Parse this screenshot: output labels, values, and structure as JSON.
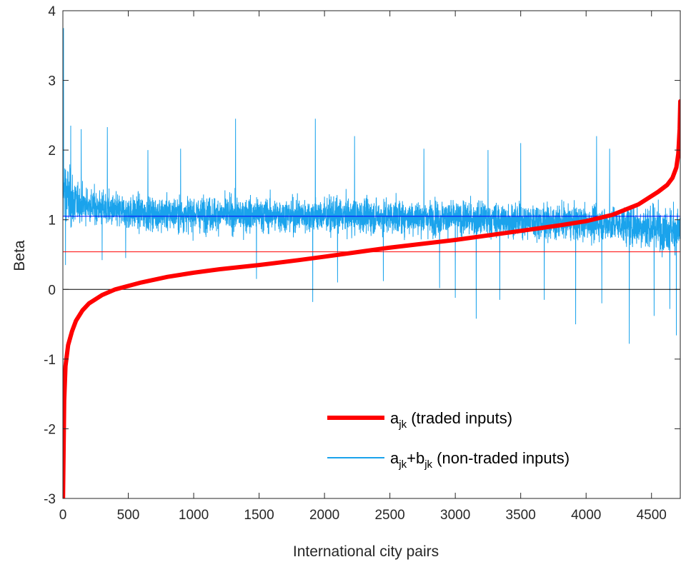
{
  "chart_data": {
    "type": "line",
    "title": "",
    "xlabel": "International city pairs",
    "ylabel": "Beta",
    "xlim": [
      0,
      4720
    ],
    "ylim": [
      -3,
      4
    ],
    "xticks": [
      0,
      500,
      1000,
      1500,
      2000,
      2500,
      3000,
      3500,
      4000,
      4500
    ],
    "yticks": [
      -3,
      -2,
      -1,
      0,
      1,
      2,
      3,
      4
    ],
    "grid": false,
    "legend_position": "bottom-right",
    "series": [
      {
        "name": "a_jk (traded inputs)",
        "color": "#ff0000",
        "kind": "sorted-curve",
        "x": [
          1,
          10,
          20,
          40,
          70,
          100,
          150,
          200,
          300,
          400,
          500,
          600,
          800,
          1000,
          1200,
          1500,
          1800,
          2000,
          2500,
          3000,
          3500,
          3800,
          4000,
          4200,
          4400,
          4550,
          4620,
          4660,
          4690,
          4705,
          4715,
          4720
        ],
        "y": [
          -3.0,
          -1.6,
          -1.1,
          -0.8,
          -0.6,
          -0.45,
          -0.3,
          -0.2,
          -0.08,
          0.0,
          0.05,
          0.1,
          0.18,
          0.24,
          0.29,
          0.35,
          0.42,
          0.47,
          0.6,
          0.71,
          0.84,
          0.92,
          0.98,
          1.07,
          1.22,
          1.4,
          1.5,
          1.6,
          1.75,
          1.95,
          2.3,
          2.7
        ]
      },
      {
        "name": "a_jk+b_jk (non-traded inputs)",
        "color": "#1aa3ec",
        "kind": "noisy",
        "x": [
          0,
          10,
          50,
          100,
          200,
          400,
          600,
          900,
          1200,
          1500,
          1800,
          2000,
          2300,
          2600,
          3000,
          3300,
          3600,
          3900,
          4100,
          4300,
          4500,
          4600,
          4720
        ],
        "y": [
          1.35,
          1.45,
          1.3,
          1.25,
          1.2,
          1.12,
          1.1,
          1.08,
          1.08,
          1.07,
          1.06,
          1.06,
          1.05,
          1.04,
          1.02,
          1.0,
          0.98,
          0.96,
          0.95,
          0.93,
          0.9,
          0.88,
          0.85
        ],
        "spikes": [
          {
            "x": 5,
            "y": 3.75
          },
          {
            "x": 20,
            "y": 2.9
          },
          {
            "x": 60,
            "y": 2.35
          },
          {
            "x": 140,
            "y": 2.3
          },
          {
            "x": 340,
            "y": 2.33
          },
          {
            "x": 650,
            "y": 2.0
          },
          {
            "x": 900,
            "y": 2.02
          },
          {
            "x": 1320,
            "y": 2.45
          },
          {
            "x": 1480,
            "y": 1.95
          },
          {
            "x": 1930,
            "y": 2.45
          },
          {
            "x": 2230,
            "y": 2.2
          },
          {
            "x": 2760,
            "y": 2.02
          },
          {
            "x": 3250,
            "y": 2.0
          },
          {
            "x": 3500,
            "y": 2.1
          },
          {
            "x": 4080,
            "y": 2.2
          },
          {
            "x": 4180,
            "y": 2.02
          },
          {
            "x": 4330,
            "y": 1.95
          },
          {
            "x": 4520,
            "y": 1.72
          },
          {
            "x": 1910,
            "y": -0.18
          },
          {
            "x": 3160,
            "y": -0.42
          },
          {
            "x": 3340,
            "y": -0.15
          },
          {
            "x": 3680,
            "y": -0.15
          },
          {
            "x": 3920,
            "y": -0.5
          },
          {
            "x": 4120,
            "y": -0.2
          },
          {
            "x": 4330,
            "y": -0.78
          },
          {
            "x": 4520,
            "y": -0.38
          },
          {
            "x": 4690,
            "y": -0.66
          },
          {
            "x": 4640,
            "y": -0.28
          },
          {
            "x": 3000,
            "y": -0.12
          },
          {
            "x": 2880,
            "y": 0.02
          },
          {
            "x": 2450,
            "y": 0.12
          },
          {
            "x": 2100,
            "y": 0.1
          },
          {
            "x": 1480,
            "y": 0.15
          },
          {
            "x": 300,
            "y": 0.42
          },
          {
            "x": 480,
            "y": 0.45
          },
          {
            "x": 20,
            "y": 0.35
          }
        ]
      }
    ],
    "reference_lines": [
      {
        "y": 1.05,
        "color": "#0000ff"
      },
      {
        "y": 0.54,
        "color": "#ff0000"
      },
      {
        "y": 0,
        "color": "#000000"
      }
    ],
    "legend": {
      "entries": [
        {
          "main": "a",
          "sub": "jk",
          "rest": " (traded inputs)",
          "color": "#ff0000"
        },
        {
          "main": "a",
          "sub": "jk",
          "mid": "+b",
          "sub2": "jk",
          "rest": " (non-traded inputs)",
          "color": "#1aa3ec"
        }
      ]
    }
  }
}
